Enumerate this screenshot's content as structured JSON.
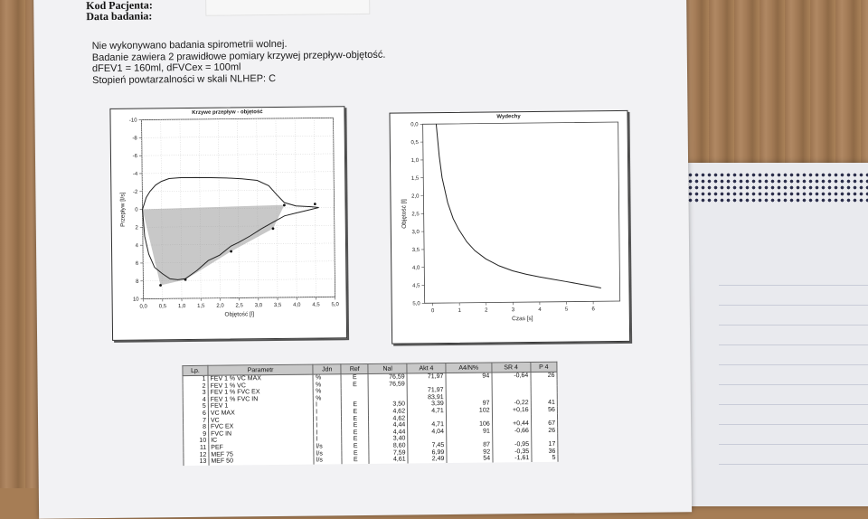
{
  "header": {
    "patient_code_label": "Kod Pacjenta:",
    "test_date_label": "Data badania:"
  },
  "notes": [
    "Nie wykonywano badania spirometrii wolnej.",
    "Badanie zawiera 2 prawidłowe pomiary krzywej przepływ-objętość.",
    "dFEV1 = 160ml, dFVCex = 100ml",
    "Stopień powtarzalności w skali NLHEP: C"
  ],
  "chart_data": [
    {
      "type": "line",
      "title": "Krzywe przepływ - objętość",
      "xlabel": "Objętość [l]",
      "ylabel": "Przepływ [l/s]",
      "x_ticks": [
        "0,0",
        "0,5",
        "1,0",
        "1,5",
        "2,0",
        "2,5",
        "3,0",
        "3,5",
        "4,0",
        "4,5",
        "5,0"
      ],
      "y_ticks": [
        "-10",
        "-8",
        "-6",
        "-4",
        "-2",
        "0",
        "2",
        "4",
        "6",
        "8",
        "10"
      ],
      "xlim": [
        0,
        5.0
      ],
      "ylim": [
        -10,
        10
      ],
      "y_inverted": true,
      "grid": true,
      "series": [
        {
          "x": [
            0,
            0.1,
            0.2,
            0.35,
            0.5,
            0.7,
            1.0,
            1.4,
            1.8,
            2.2,
            2.6,
            3.0,
            3.3,
            3.5,
            3.7,
            4.0,
            4.4,
            4.6
          ],
          "y": [
            0,
            -1.3,
            -2.0,
            -2.7,
            -3.1,
            -3.4,
            -3.5,
            -3.5,
            -3.45,
            -3.4,
            -3.3,
            -3.1,
            -2.5,
            -1.5,
            -0.6,
            -0.2,
            -0.1,
            0
          ]
        },
        {
          "x": [
            0,
            0.05,
            0.15,
            0.3,
            0.5,
            0.7,
            0.9,
            1.1,
            1.4,
            1.7,
            2.0,
            2.3,
            2.5,
            2.8,
            3.1,
            3.4,
            3.7,
            4.0,
            4.3,
            4.6
          ],
          "y": [
            0,
            3.0,
            5.0,
            6.5,
            7.2,
            7.8,
            7.9,
            7.8,
            6.9,
            5.8,
            5.2,
            4.2,
            3.8,
            3.1,
            2.3,
            1.6,
            0.9,
            0.6,
            0.3,
            0
          ]
        },
        {
          "x": [
            0,
            0.45,
            1.1,
            2.3,
            3.4,
            3.7,
            4.5
          ],
          "y": [
            0,
            8.5,
            7.9,
            4.8,
            2.3,
            -0.3,
            -0.4
          ]
        }
      ],
      "markers": {
        "x": [
          0.45,
          1.1,
          2.3,
          3.4,
          3.7,
          4.5
        ],
        "y": [
          8.5,
          7.9,
          4.8,
          2.3,
          -0.3,
          -0.4
        ]
      }
    },
    {
      "type": "line",
      "title": "Wydechy",
      "xlabel": "Czas [s]",
      "ylabel": "Objętość [l]",
      "x_ticks": [
        "0",
        "1",
        "2",
        "3",
        "4",
        "5",
        "6"
      ],
      "y_ticks": [
        "0,0",
        "0,5",
        "1,0",
        "1,5",
        "2,0",
        "2,5",
        "3,0",
        "3,5",
        "4,0",
        "4,5",
        "5,0"
      ],
      "xlim": [
        -0.3,
        7.0
      ],
      "ylim": [
        0,
        5.0
      ],
      "y_inverted": true,
      "grid": false,
      "series": [
        {
          "x": [
            0.2,
            0.3,
            0.4,
            0.6,
            0.8,
            1.0,
            1.3,
            1.6,
            2.0,
            2.5,
            3.0,
            3.5,
            4.0,
            4.5,
            5.0,
            5.5,
            6.0,
            6.3
          ],
          "y": [
            0.0,
            0.9,
            1.5,
            2.2,
            2.65,
            2.95,
            3.3,
            3.55,
            3.78,
            3.98,
            4.12,
            4.22,
            4.3,
            4.37,
            4.44,
            4.51,
            4.58,
            4.63
          ]
        }
      ]
    }
  ],
  "table": {
    "columns": [
      "Lp.",
      "Parametr",
      "Jdn",
      "Ref",
      "Nal",
      "Akt 4",
      "A4/N%",
      "SR 4",
      "P 4"
    ],
    "rows": [
      [
        "1",
        "FEV 1 % VC MAX",
        "%",
        "E",
        "76,59",
        "71,97",
        "94",
        "-0,64",
        "26"
      ],
      [
        "2",
        "FEV 1 % VC",
        "%",
        "E",
        "76,59",
        "",
        "",
        "",
        ""
      ],
      [
        "3",
        "FEV 1 % FVC EX",
        "%",
        "",
        "",
        "71,97",
        "",
        "",
        ""
      ],
      [
        "4",
        "FEV 1 % FVC IN",
        "%",
        "",
        "",
        "83,91",
        "",
        "",
        ""
      ],
      [
        "5",
        "FEV 1",
        "l",
        "E",
        "3,50",
        "3,39",
        "97",
        "-0,22",
        "41"
      ],
      [
        "6",
        "VC MAX",
        "l",
        "E",
        "4,62",
        "4,71",
        "102",
        "+0,16",
        "56"
      ],
      [
        "7",
        "VC",
        "l",
        "E",
        "4,62",
        "",
        "",
        "",
        ""
      ],
      [
        "8",
        "FVC EX",
        "l",
        "E",
        "4,44",
        "4,71",
        "106",
        "+0,44",
        "67"
      ],
      [
        "9",
        "FVC IN",
        "l",
        "E",
        "4,44",
        "4,04",
        "91",
        "-0,66",
        "26"
      ],
      [
        "10",
        "IC",
        "l",
        "E",
        "3,40",
        "",
        "",
        "",
        ""
      ],
      [
        "11",
        "PEF",
        "l/s",
        "E",
        "8,60",
        "7,45",
        "87",
        "-0,95",
        "17"
      ],
      [
        "12",
        "MEF 75",
        "l/s",
        "E",
        "7,59",
        "6,99",
        "92",
        "-0,35",
        "36"
      ],
      [
        "13",
        "MEF 50",
        "l/s",
        "E",
        "4,61",
        "2,49",
        "54",
        "-1,61",
        "5"
      ]
    ]
  }
}
